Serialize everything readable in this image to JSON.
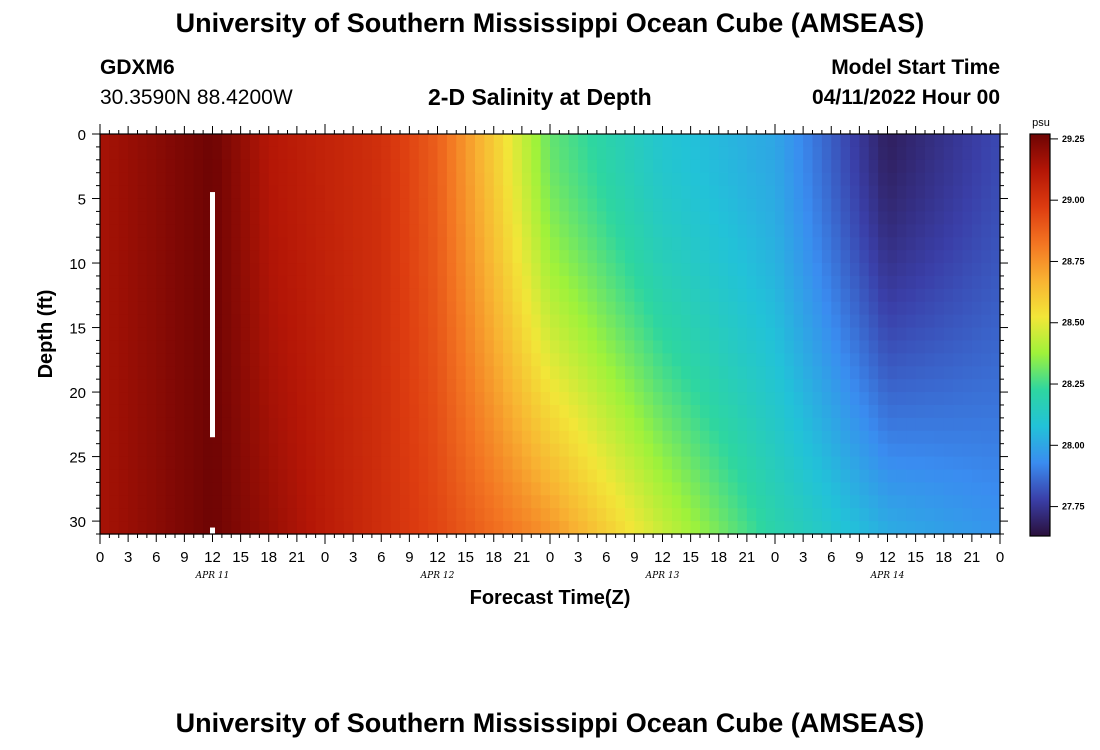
{
  "header": {
    "title": "University of Southern Mississippi Ocean Cube (AMSEAS)",
    "station_id": "GDXM6",
    "coordinates": "30.3590N  88.4200W",
    "subtitle": "2-D Salinity at Depth",
    "start_label": "Model Start Time",
    "start_time": "04/11/2022 Hour 00"
  },
  "footer": {
    "title": "University of Southern Mississippi Ocean Cube (AMSEAS)"
  },
  "chart_data": {
    "type": "heatmap",
    "title": "2-D Salinity at Depth",
    "xlabel": "Forecast Time(Z)",
    "ylabel": "Depth (ft)",
    "x_range_hours": [
      0,
      96
    ],
    "y_range_ft": [
      0,
      31
    ],
    "x_tick_labels": [
      "0",
      "3",
      "6",
      "9",
      "12",
      "15",
      "18",
      "21",
      "0",
      "3",
      "6",
      "9",
      "12",
      "15",
      "18",
      "21",
      "0",
      "3",
      "6",
      "9",
      "12",
      "15",
      "18",
      "21",
      "0",
      "3",
      "6",
      "9",
      "12",
      "15",
      "18",
      "21",
      "0"
    ],
    "x_date_labels": [
      "APR 11",
      "APR 12",
      "APR 13",
      "APR 14"
    ],
    "y_ticks": [
      0,
      5,
      10,
      15,
      20,
      25,
      30
    ],
    "colorbar": {
      "unit": "psu",
      "range": [
        27.63,
        29.27
      ],
      "ticks": [
        29.25,
        29.0,
        28.75,
        28.5,
        28.25,
        28.0,
        27.75
      ],
      "tick_labels": [
        "29.25",
        "29.00",
        "28.75",
        "28.50",
        "28.25",
        "28.00",
        "27.75"
      ]
    },
    "current_time_marker_hour": 12,
    "surface_salinity_by_hour": [
      {
        "hour": 0,
        "psu": 29.15
      },
      {
        "hour": 12,
        "psu": 29.27
      },
      {
        "hour": 18,
        "psu": 29.12
      },
      {
        "hour": 30,
        "psu": 29.02
      },
      {
        "hour": 36,
        "psu": 28.88
      },
      {
        "hour": 42,
        "psu": 28.6
      },
      {
        "hour": 48,
        "psu": 28.3
      },
      {
        "hour": 60,
        "psu": 28.1
      },
      {
        "hour": 72,
        "psu": 28.0
      },
      {
        "hour": 84,
        "psu": 27.68
      },
      {
        "hour": 96,
        "psu": 27.8
      }
    ],
    "bottom_salinity_by_hour": [
      {
        "hour": 0,
        "psu": 29.15
      },
      {
        "hour": 12,
        "psu": 29.27
      },
      {
        "hour": 24,
        "psu": 29.1
      },
      {
        "hour": 36,
        "psu": 28.95
      },
      {
        "hour": 48,
        "psu": 28.75
      },
      {
        "hour": 60,
        "psu": 28.45
      },
      {
        "hour": 72,
        "psu": 28.2
      },
      {
        "hour": 84,
        "psu": 28.02
      },
      {
        "hour": 96,
        "psu": 27.95
      }
    ]
  },
  "colors": {
    "background": "#ffffff",
    "marker": "#ffffff",
    "colormap": [
      "#2a0f3a",
      "#3a3fa8",
      "#3a8cf0",
      "#22c2d8",
      "#2ed6a0",
      "#9ff23a",
      "#f2e638",
      "#f8b232",
      "#f37522",
      "#dd3c10",
      "#b41606",
      "#6e0404"
    ]
  }
}
